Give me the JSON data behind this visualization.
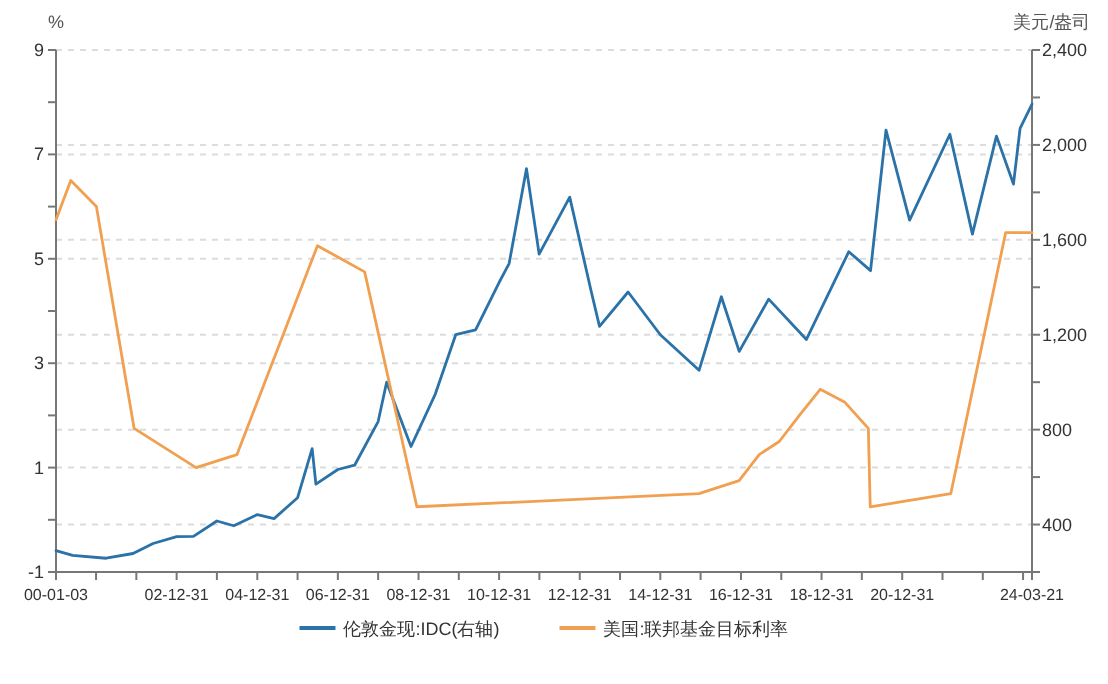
{
  "chart_data": {
    "type": "line",
    "ylabel": "%",
    "y2label": "美元/盎司",
    "xlim": [
      "2000-01-03",
      "2024-03-21"
    ],
    "xticks": [
      {
        "value": "2000-01-03",
        "label": "00-01-03"
      },
      {
        "value": "2000-12-31",
        "label": null
      },
      {
        "value": "2001-12-31",
        "label": null
      },
      {
        "value": "2002-12-31",
        "label": "02-12-31"
      },
      {
        "value": "2003-12-31",
        "label": null
      },
      {
        "value": "2004-12-31",
        "label": "04-12-31"
      },
      {
        "value": "2005-12-31",
        "label": null
      },
      {
        "value": "2006-12-31",
        "label": "06-12-31"
      },
      {
        "value": "2007-12-31",
        "label": null
      },
      {
        "value": "2008-12-31",
        "label": "08-12-31"
      },
      {
        "value": "2009-12-31",
        "label": null
      },
      {
        "value": "2010-12-31",
        "label": "10-12-31"
      },
      {
        "value": "2011-12-31",
        "label": null
      },
      {
        "value": "2012-12-31",
        "label": "12-12-31"
      },
      {
        "value": "2013-12-31",
        "label": null
      },
      {
        "value": "2014-12-31",
        "label": "14-12-31"
      },
      {
        "value": "2015-12-31",
        "label": null
      },
      {
        "value": "2016-12-31",
        "label": "16-12-31"
      },
      {
        "value": "2017-12-31",
        "label": null
      },
      {
        "value": "2018-12-31",
        "label": "18-12-31"
      },
      {
        "value": "2019-12-31",
        "label": null
      },
      {
        "value": "2020-12-31",
        "label": "20-12-31"
      },
      {
        "value": "2021-12-31",
        "label": null
      },
      {
        "value": "2022-12-31",
        "label": null
      },
      {
        "value": "2023-12-31",
        "label": null
      },
      {
        "value": "2024-03-21",
        "label": "24-03-21"
      }
    ],
    "ylim": [
      -1,
      9
    ],
    "yticks": [
      -1,
      {
        "value": 0,
        "label": null
      },
      1,
      {
        "value": 2,
        "label": null
      },
      3,
      {
        "value": 4,
        "label": null
      },
      5,
      {
        "value": 6,
        "label": null
      },
      7,
      {
        "value": 8,
        "label": null
      },
      9
    ],
    "y2lim": [
      200,
      2400
    ],
    "y2ticks": [
      {
        "value": 200,
        "label": null
      },
      400,
      {
        "value": 600,
        "label": null
      },
      800,
      {
        "value": 1000,
        "label": null
      },
      {
        "value": 1200,
        "label": "1,200"
      },
      {
        "value": 1400,
        "label": null
      },
      {
        "value": 1600,
        "label": "1,600"
      },
      {
        "value": 1800,
        "label": null
      },
      {
        "value": 2000,
        "label": "2,000"
      },
      {
        "value": 2200,
        "label": null
      },
      {
        "value": 2400,
        "label": "2,400"
      }
    ],
    "grid": "y",
    "legend": "bottom",
    "marker": "none",
    "line_style": "solid",
    "series": [
      {
        "name": "伦敦金现:IDC(右轴)",
        "color": "#2a72a8",
        "axis": "y2",
        "x": [
          "2000-01-03",
          "2000-06-01",
          "2001-04-01",
          "2001-12-01",
          "2002-06-01",
          "2002-12-31",
          "2003-06-01",
          "2003-12-31",
          "2004-06-01",
          "2004-12-31",
          "2005-06-01",
          "2005-12-31",
          "2006-05-12",
          "2006-06-15",
          "2006-12-31",
          "2007-06-01",
          "2007-12-31",
          "2008-03-17",
          "2008-10-24",
          "2009-06-01",
          "2009-12-03",
          "2010-06-01",
          "2010-12-31",
          "2011-04-01",
          "2011-09-05",
          "2011-12-29",
          "2012-10-01",
          "2013-04-15",
          "2013-06-28",
          "2014-03-14",
          "2014-12-31",
          "2015-12-17",
          "2016-07-06",
          "2016-12-15",
          "2017-09-08",
          "2018-08-16",
          "2019-09-04",
          "2020-03-19",
          "2020-08-06",
          "2021-03-08",
          "2022-03-08",
          "2022-09-28",
          "2023-05-04",
          "2023-10-05",
          "2023-12-04",
          "2024-03-21"
        ],
        "values": [
          290,
          270,
          258,
          278,
          320,
          349,
          350,
          415,
          395,
          442,
          425,
          513,
          720,
          570,
          632,
          650,
          834,
          1000,
          729,
          950,
          1200,
          1220,
          1420,
          1500,
          1900,
          1540,
          1780,
          1380,
          1235,
          1380,
          1200,
          1050,
          1360,
          1130,
          1350,
          1180,
          1550,
          1470,
          2062,
          1683,
          2045,
          1624,
          2037,
          1835,
          2070,
          2172
        ]
      },
      {
        "name": "美国:联邦基金目标利率",
        "color": "#f0a050",
        "axis": "y",
        "x": [
          "2000-01-03",
          "2000-05-16",
          "2001-01-03",
          "2001-12-11",
          "2003-06-25",
          "2004-06-30",
          "2006-06-29",
          "2007-08-31",
          "2008-12-16",
          "2015-12-16",
          "2016-12-14",
          "2017-06-14",
          "2017-12-13",
          "2018-06-13",
          "2018-12-19",
          "2019-07-31",
          "2020-02-28",
          "2020-03-16",
          "2022-03-16",
          "2023-07-26",
          "2024-03-21"
        ],
        "values": [
          5.75,
          6.5,
          6.0,
          1.75,
          1.0,
          1.25,
          5.25,
          4.75,
          0.25,
          0.5,
          0.75,
          1.25,
          1.5,
          2.0,
          2.5,
          2.25,
          1.75,
          0.25,
          0.5,
          5.5,
          5.5
        ]
      }
    ]
  }
}
